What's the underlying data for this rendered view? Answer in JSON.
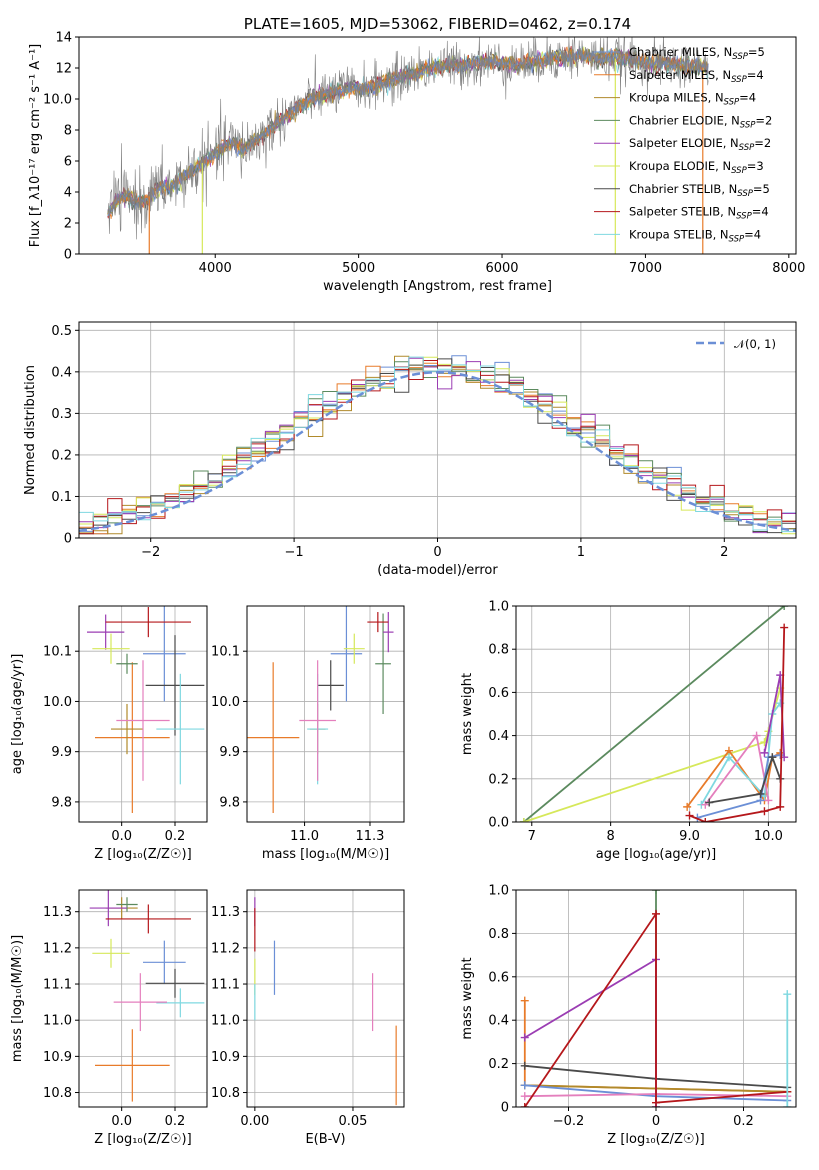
{
  "chart_data": [
    {
      "id": "spectrum",
      "type": "line",
      "title": "PLATE=1605, MJD=53062, FIBERID=0462, z=0.174",
      "xlabel": "wavelength [Angstrom, rest frame]",
      "ylabel": "Flux [f_λ10⁻¹⁷ erg cm⁻² s⁻¹ A⁻¹]",
      "xlim": [
        3050,
        8050
      ],
      "ylim": [
        0,
        14
      ],
      "xticks": [
        4000,
        5000,
        6000,
        7000,
        8000
      ],
      "yticks": [
        0,
        2,
        4,
        6,
        8,
        10,
        12,
        14
      ],
      "data_range": [
        3250,
        7440
      ],
      "anchors": {
        "x": [
          3250,
          3300,
          3350,
          3500,
          3600,
          3700,
          3900,
          4000,
          4100,
          4200,
          4300,
          4500,
          4700,
          4900,
          5100,
          5300,
          5500,
          5700,
          5900,
          6100,
          6300,
          6500,
          6800,
          7000,
          7200,
          7440
        ],
        "y": [
          2.6,
          3.4,
          3.6,
          3.4,
          4.2,
          4.4,
          5.8,
          6.4,
          7.2,
          6.8,
          7.4,
          9.0,
          10.2,
          10.6,
          10.8,
          11.4,
          12.0,
          12.2,
          12.4,
          12.2,
          12.6,
          12.8,
          12.6,
          12.4,
          12.2,
          12.0
        ]
      },
      "observed": "gray",
      "dropouts": [
        {
          "x": 3540,
          "color": "#e87b2a"
        },
        {
          "x": 3910,
          "color": "#d6e85a"
        },
        {
          "x": 6790,
          "color": "#d6e85a"
        },
        {
          "x": 7400,
          "color": "#e87b2a"
        }
      ],
      "legend": [
        {
          "label": "Chabrier MILES, N",
          "sub": "SSP",
          "suffix": "=5",
          "color": "#6b8fd6"
        },
        {
          "label": "Salpeter MILES, N",
          "sub": "SSP",
          "suffix": "=4",
          "color": "#e87b2a"
        },
        {
          "label": "Kroupa MILES, N",
          "sub": "SSP",
          "suffix": "=4",
          "color": "#b08a2b"
        },
        {
          "label": "Chabrier ELODIE, N",
          "sub": "SSP",
          "suffix": "=2",
          "color": "#5b8a5e"
        },
        {
          "label": "Salpeter ELODIE, N",
          "sub": "SSP",
          "suffix": "=2",
          "color": "#9b3db3"
        },
        {
          "label": "Kroupa ELODIE, N",
          "sub": "SSP",
          "suffix": "=3",
          "color": "#d6e85a"
        },
        {
          "label": "Chabrier STELIB, N",
          "sub": "SSP",
          "suffix": "=5",
          "color": "#4a4a4a"
        },
        {
          "label": "Salpeter STELIB, N",
          "sub": "SSP",
          "suffix": "=4",
          "color": "#b5171b"
        },
        {
          "label": "Kroupa STELIB, N",
          "sub": "SSP",
          "suffix": "=4",
          "color": "#7fd8e0"
        }
      ]
    },
    {
      "id": "residuals",
      "type": "histogram",
      "xlabel": "(data-model)/error",
      "ylabel": "Normed distribution",
      "xlim": [
        -2.5,
        2.5
      ],
      "ylim": [
        0,
        0.52
      ],
      "xticks": [
        -2,
        -1,
        0,
        1,
        2
      ],
      "yticks": [
        0.0,
        0.1,
        0.2,
        0.3,
        0.4,
        0.5
      ],
      "bin_width": 0.1,
      "reference": {
        "label": "𝒩(0, 1)",
        "color": "#6b8fd6"
      },
      "series_colors": [
        "#6b8fd6",
        "#e87b2a",
        "#b08a2b",
        "#5b8a5e",
        "#9b3db3",
        "#d6e85a",
        "#4a4a4a",
        "#b5171b",
        "#7fd8e0"
      ]
    },
    {
      "id": "age_vs_Z",
      "type": "errorbar",
      "xlabel": "Z [log₁₀(Z/Z☉)]",
      "ylabel": "age  [log₁₀(age/yr)]",
      "xlim": [
        -0.16,
        0.32
      ],
      "ylim": [
        9.76,
        10.19
      ],
      "xticks": [
        0.0,
        0.2
      ],
      "yticks": [
        9.8,
        9.9,
        10.0,
        10.1
      ],
      "points": [
        {
          "x": 0.16,
          "y": 10.095,
          "xe": 0.08,
          "ye": 0.095,
          "color": "#6b8fd6"
        },
        {
          "x": 0.04,
          "y": 9.928,
          "xe": 0.14,
          "ye": 0.15,
          "color": "#e87b2a"
        },
        {
          "x": 0.02,
          "y": 9.945,
          "xe": 0.06,
          "ye": 0.05,
          "color": "#b08a2b"
        },
        {
          "x": 0.02,
          "y": 10.075,
          "xe": 0.04,
          "ye": 0.02,
          "color": "#5b8a5e"
        },
        {
          "x": -0.06,
          "y": 10.138,
          "xe": 0.07,
          "ye": 0.035,
          "color": "#9b3db3"
        },
        {
          "x": -0.04,
          "y": 10.105,
          "xe": 0.07,
          "ye": 0.03,
          "color": "#d6e85a"
        },
        {
          "x": 0.2,
          "y": 10.032,
          "xe": 0.11,
          "ye": 0.1,
          "color": "#4a4a4a"
        },
        {
          "x": 0.1,
          "y": 10.158,
          "xe": 0.16,
          "ye": 0.03,
          "color": "#b5171b"
        },
        {
          "x": 0.22,
          "y": 9.945,
          "xe": 0.09,
          "ye": 0.11,
          "color": "#7fd8e0"
        },
        {
          "x": 0.08,
          "y": 9.962,
          "xe": 0.1,
          "ye": 0.12,
          "color": "#e47fbd"
        }
      ]
    },
    {
      "id": "age_vs_mass",
      "type": "errorbar",
      "xlabel": "mass [log₁₀(M/M☉)]",
      "xlim": [
        10.78,
        11.38
      ],
      "ylim": [
        9.76,
        10.19
      ],
      "xticks": [
        11.0,
        11.25
      ],
      "yticks": [
        9.8,
        9.9,
        10.0,
        10.1
      ],
      "points": [
        {
          "x": 11.16,
          "y": 10.095,
          "xe": 0.06,
          "ye": 0.095,
          "color": "#6b8fd6"
        },
        {
          "x": 10.88,
          "y": 9.928,
          "xe": 0.1,
          "ye": 0.15,
          "color": "#e87b2a"
        },
        {
          "x": 11.05,
          "y": 9.945,
          "xe": 0.03,
          "ye": 0.05,
          "color": "#b08a2b"
        },
        {
          "x": 11.3,
          "y": 10.075,
          "xe": 0.03,
          "ye": 0.1,
          "color": "#5b8a5e"
        },
        {
          "x": 11.32,
          "y": 10.138,
          "xe": 0.02,
          "ye": 0.04,
          "color": "#9b3db3"
        },
        {
          "x": 11.19,
          "y": 10.105,
          "xe": 0.04,
          "ye": 0.03,
          "color": "#d6e85a"
        },
        {
          "x": 11.1,
          "y": 10.032,
          "xe": 0.05,
          "ye": 0.05,
          "color": "#4a4a4a"
        },
        {
          "x": 11.28,
          "y": 10.158,
          "xe": 0.04,
          "ye": 0.02,
          "color": "#b5171b"
        },
        {
          "x": 11.05,
          "y": 9.945,
          "xe": 0.04,
          "ye": 0.11,
          "color": "#7fd8e0"
        },
        {
          "x": 11.05,
          "y": 9.962,
          "xe": 0.07,
          "ye": 0.12,
          "color": "#e47fbd"
        }
      ]
    },
    {
      "id": "weight_vs_age",
      "type": "line",
      "xlabel": "age  [log₁₀(age/yr)]",
      "ylabel": "mass weight",
      "xlim": [
        6.8,
        10.35
      ],
      "ylim": [
        0,
        1
      ],
      "xticks": [
        7,
        8,
        9,
        10
      ],
      "yticks": [
        0.0,
        0.2,
        0.4,
        0.6,
        0.8,
        1.0
      ],
      "series": [
        {
          "color": "#5b8a5e",
          "x": [
            6.9,
            10.2
          ],
          "y": [
            0.0,
            1.0
          ]
        },
        {
          "color": "#d6e85a",
          "x": [
            6.9,
            9.95,
            10.0,
            10.15
          ],
          "y": [
            0.0,
            0.37,
            0.42,
            0.62
          ]
        },
        {
          "color": "#e87b2a",
          "x": [
            8.97,
            9.5,
            9.95,
            10.05,
            10.15
          ],
          "y": [
            0.07,
            0.33,
            0.1,
            0.3,
            0.32
          ]
        },
        {
          "color": "#7fd8e0",
          "x": [
            9.15,
            9.5,
            9.95,
            10.05,
            10.15
          ],
          "y": [
            0.08,
            0.3,
            0.12,
            0.5,
            0.55
          ]
        },
        {
          "color": "#e47fbd",
          "x": [
            9.2,
            9.85,
            10.0
          ],
          "y": [
            0.08,
            0.4,
            0.1
          ]
        },
        {
          "color": "#6b8fd6",
          "x": [
            9.1,
            9.9,
            10.0,
            10.15
          ],
          "y": [
            0.02,
            0.1,
            0.3,
            0.31
          ]
        },
        {
          "color": "#4a4a4a",
          "x": [
            9.25,
            9.9,
            10.05,
            10.15
          ],
          "y": [
            0.09,
            0.13,
            0.3,
            0.2
          ]
        },
        {
          "color": "#9b3db3",
          "x": [
            9.95,
            10.15,
            10.2
          ],
          "y": [
            0.32,
            0.68,
            0.3
          ]
        },
        {
          "color": "#b5171b",
          "x": [
            9.0,
            9.2,
            9.95,
            10.15,
            10.2
          ],
          "y": [
            0.03,
            0.0,
            0.05,
            0.07,
            0.9
          ]
        }
      ]
    },
    {
      "id": "mass_vs_Z",
      "type": "errorbar",
      "xlabel": "Z [log₁₀(Z/Z☉)]",
      "ylabel": "mass [log₁₀(M/M☉)]",
      "xlim": [
        -0.16,
        0.32
      ],
      "ylim": [
        10.76,
        11.36
      ],
      "xticks": [
        0.0,
        0.2
      ],
      "yticks": [
        10.8,
        10.9,
        11.0,
        11.1,
        11.2,
        11.3
      ],
      "points": [
        {
          "x": 0.16,
          "y": 11.16,
          "xe": 0.08,
          "ye": 0.06,
          "color": "#6b8fd6"
        },
        {
          "x": 0.04,
          "y": 10.875,
          "xe": 0.14,
          "ye": 0.1,
          "color": "#e87b2a"
        },
        {
          "x": 0.0,
          "y": 11.31,
          "xe": 0.06,
          "ye": 0.03,
          "color": "#b08a2b"
        },
        {
          "x": 0.02,
          "y": 11.32,
          "xe": 0.04,
          "ye": 0.02,
          "color": "#5b8a5e"
        },
        {
          "x": -0.05,
          "y": 11.31,
          "xe": 0.07,
          "ye": 0.05,
          "color": "#9b3db3"
        },
        {
          "x": -0.04,
          "y": 11.185,
          "xe": 0.07,
          "ye": 0.04,
          "color": "#d6e85a"
        },
        {
          "x": 0.2,
          "y": 11.102,
          "xe": 0.11,
          "ye": 0.04,
          "color": "#4a4a4a"
        },
        {
          "x": 0.1,
          "y": 11.28,
          "xe": 0.16,
          "ye": 0.04,
          "color": "#b5171b"
        },
        {
          "x": 0.22,
          "y": 11.048,
          "xe": 0.09,
          "ye": 0.04,
          "color": "#7fd8e0"
        },
        {
          "x": 0.07,
          "y": 11.05,
          "xe": 0.1,
          "ye": 0.08,
          "color": "#e47fbd"
        }
      ]
    },
    {
      "id": "mass_vs_EBV",
      "type": "errorbar",
      "xlabel": "E(B-V)",
      "xlim": [
        -0.004,
        0.076
      ],
      "ylim": [
        10.76,
        11.36
      ],
      "xticks": [
        0.0,
        0.05
      ],
      "yticks": [
        10.8,
        10.9,
        11.0,
        11.1,
        11.2,
        11.3
      ],
      "points": [
        {
          "x": 0.01,
          "y": 11.145,
          "xe": 0,
          "ye": 0.075,
          "color": "#6b8fd6"
        },
        {
          "x": 0.072,
          "y": 10.875,
          "xe": 0,
          "ye": 0.11,
          "color": "#e87b2a"
        },
        {
          "x": 0.0,
          "y": 11.3,
          "xe": 0,
          "ye": 0.04,
          "color": "#9b3db3"
        },
        {
          "x": 0.0,
          "y": 11.25,
          "xe": 0,
          "ye": 0.06,
          "color": "#b5171b"
        },
        {
          "x": 0.0,
          "y": 11.12,
          "xe": 0,
          "ye": 0.05,
          "color": "#d6e85a"
        },
        {
          "x": 0.0,
          "y": 11.05,
          "xe": 0,
          "ye": 0.05,
          "color": "#7fd8e0"
        },
        {
          "x": 0.06,
          "y": 11.05,
          "xe": 0,
          "ye": 0.08,
          "color": "#e47fbd"
        }
      ]
    },
    {
      "id": "weight_vs_Z",
      "type": "line",
      "xlabel": "Z [log₁₀(Z/Z☉)]",
      "ylabel": "mass weight",
      "xlim": [
        -0.32,
        0.32
      ],
      "ylim": [
        0,
        1
      ],
      "xticks": [
        -0.2,
        0.0,
        0.2
      ],
      "yticks": [
        0.0,
        0.2,
        0.4,
        0.6,
        0.8,
        1.0
      ],
      "series": [
        {
          "color": "#5b8a5e",
          "x": [
            0.0,
            0.0
          ],
          "y": [
            0.0,
            1.0
          ]
        },
        {
          "color": "#e87b2a",
          "x": [
            -0.3,
            -0.3,
            0.3
          ],
          "y": [
            0.49,
            0.1,
            0.07
          ]
        },
        {
          "color": "#4a4a4a",
          "x": [
            -0.3,
            0.0,
            0.3
          ],
          "y": [
            0.19,
            0.13,
            0.09
          ]
        },
        {
          "color": "#b08a2b",
          "x": [
            -0.3,
            0.3
          ],
          "y": [
            0.1,
            0.07
          ]
        },
        {
          "color": "#6b8fd6",
          "x": [
            -0.3,
            0.0,
            0.3
          ],
          "y": [
            0.1,
            0.05,
            0.03
          ]
        },
        {
          "color": "#e47fbd",
          "x": [
            -0.3,
            0.0,
            0.3
          ],
          "y": [
            0.05,
            0.06,
            0.05
          ]
        },
        {
          "color": "#9b3db3",
          "x": [
            -0.3,
            0.0,
            0.0
          ],
          "y": [
            0.32,
            0.68,
            0.0
          ]
        },
        {
          "color": "#b5171b",
          "x": [
            -0.3,
            0.0,
            0.0,
            0.3
          ],
          "y": [
            0.0,
            0.89,
            0.02,
            0.07
          ]
        },
        {
          "color": "#7fd8e0",
          "x": [
            0.3,
            0.3
          ],
          "y": [
            0.0,
            0.52
          ]
        }
      ]
    }
  ]
}
